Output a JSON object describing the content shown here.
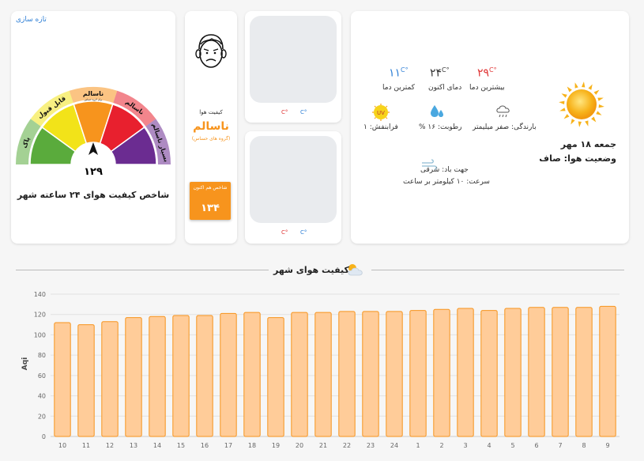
{
  "header": {
    "refresh_label": "تازه سازی"
  },
  "gauge": {
    "value": "۱۲۹",
    "title": "شاخص کیفیت هوای ۲۴ ساعته شهر",
    "segments": [
      {
        "label": "پاک",
        "color": "#5aab3c"
      },
      {
        "label": "قابل قبول",
        "color": "#f2e319"
      },
      {
        "label": "ناسالم",
        "sublabel": "برای گروه حساس",
        "color": "#f7941d"
      },
      {
        "label": "ناسالم",
        "color": "#e8202e"
      },
      {
        "label": "بسیار ناسالم",
        "color": "#6b2c91"
      }
    ]
  },
  "aq_status": {
    "label": "کیفیت هوا",
    "status": "ناسالم",
    "subtext": "(گروه های حساس)",
    "index_label": "شاخص هم اکنون",
    "index_value": "۱۳۴"
  },
  "forecast_cards": [
    {
      "max_unit": "C°",
      "min_unit": "C°"
    },
    {
      "max_unit": "C°",
      "min_unit": "C°"
    }
  ],
  "weather": {
    "max_temp_value": "۲۹",
    "max_temp_unit": "C°",
    "max_temp_label": "بیشترین دما",
    "now_temp_value": "۲۴",
    "now_temp_unit": "C°",
    "now_temp_label": "دمای اکنون",
    "min_temp_value": "۱۱",
    "min_temp_unit": "C°",
    "min_temp_label": "کمترین دما",
    "rain": "بارندگی: صفر میلیمتر",
    "humidity": "رطوبت: ۱۶ %",
    "uv": "فرابنفش: ۱",
    "wind_dir": "جهت باد: شرقی",
    "wind_speed": "سرعت: ۱۰ کیلومتر بر ساعت",
    "date": "جمعه ۱۸ مهر",
    "condition": "وضعیت هوا: صاف",
    "uv_badge": "UV",
    "colors": {
      "max": "#e03434",
      "now": "#333333",
      "min": "#2e7fd6"
    }
  },
  "chart_section": {
    "title": "کیفیت هوای شهر"
  },
  "chart_data": {
    "type": "bar",
    "ylabel": "Aqi",
    "ylim": [
      0,
      140
    ],
    "yticks": [
      0,
      20,
      40,
      60,
      80,
      100,
      120,
      140
    ],
    "categories": [
      "10",
      "11",
      "12",
      "13",
      "14",
      "15",
      "16",
      "17",
      "18",
      "19",
      "20",
      "21",
      "22",
      "23",
      "24",
      "1",
      "2",
      "3",
      "4",
      "5",
      "6",
      "7",
      "8",
      "9"
    ],
    "values": [
      112,
      110,
      113,
      117,
      118,
      119,
      119,
      121,
      122,
      117,
      122,
      122,
      123,
      123,
      123,
      124,
      125,
      126,
      124,
      126,
      127,
      127,
      127,
      128
    ],
    "bar_color": "#ffcc99",
    "bar_border": "#f7941d"
  }
}
